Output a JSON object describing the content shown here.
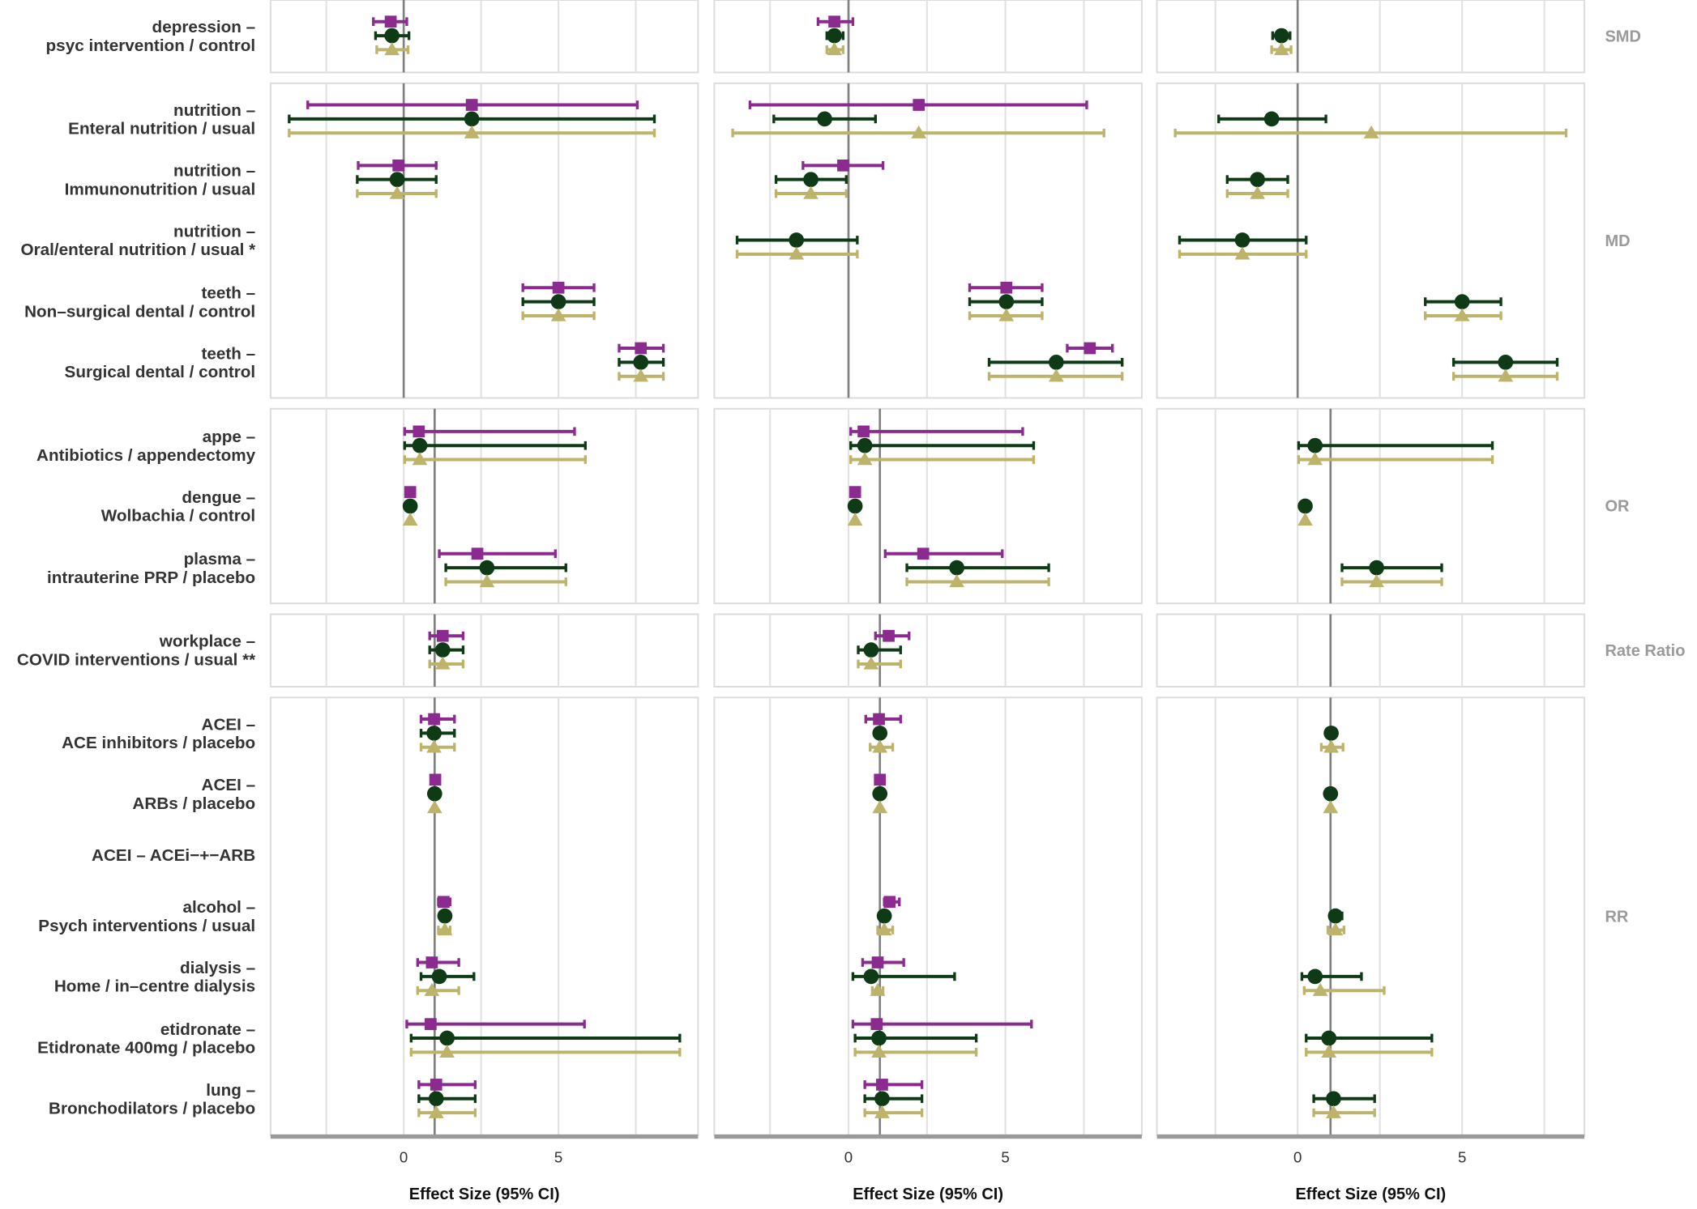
{
  "chart_data": {
    "type": "forest",
    "xlabel": "Effect Size (95% CI)",
    "x_ticks": [
      0,
      5
    ],
    "grid": true,
    "colors": {
      "square": "#8B2B8F",
      "circle": "#0E3A16",
      "triangle": "#BDB36A"
    },
    "series_markers": [
      "square",
      "circle",
      "triangle"
    ],
    "panels": 3,
    "facets": [
      {
        "name": "SMD",
        "reference": 0,
        "rows": [
          0
        ]
      },
      {
        "name": "MD",
        "reference": 0,
        "rows": [
          1,
          2,
          3,
          4,
          5
        ]
      },
      {
        "name": "OR",
        "reference": 1,
        "rows": [
          6,
          7,
          8
        ]
      },
      {
        "name": "Rate Ratio",
        "reference": 1,
        "rows": [
          9
        ]
      },
      {
        "name": "RR",
        "reference": 1,
        "rows": [
          10,
          11,
          12,
          13,
          14,
          15,
          16
        ]
      }
    ],
    "rows": [
      {
        "line1": "depression –",
        "line2": "psyc intervention / control",
        "values": [
          [
            [
              -0.42,
              -0.98,
              0.1
            ],
            [
              -0.38,
              -0.91,
              0.17
            ],
            [
              -0.38,
              -0.87,
              0.14
            ]
          ],
          [
            [
              -0.45,
              -0.97,
              0.14
            ],
            [
              -0.45,
              -0.69,
              -0.17
            ],
            [
              -0.45,
              -0.69,
              -0.17
            ]
          ],
          [
            null,
            [
              -0.49,
              -0.76,
              -0.23
            ],
            [
              -0.49,
              -0.79,
              -0.2
            ]
          ]
        ]
      },
      {
        "line1": "nutrition –",
        "line2": "Enteral nutrition / usual",
        "values": [
          [
            [
              2.2,
              -3.1,
              7.55
            ],
            [
              2.2,
              -3.7,
              8.1
            ],
            [
              2.2,
              -3.7,
              8.1
            ]
          ],
          [
            [
              2.24,
              -3.14,
              7.59
            ],
            [
              -0.76,
              -2.38,
              0.86
            ],
            [
              2.24,
              -3.69,
              8.14
            ]
          ],
          [
            null,
            [
              -0.79,
              -2.4,
              0.86
            ],
            [
              2.24,
              -3.72,
              8.16
            ]
          ]
        ]
      },
      {
        "line1": "nutrition –",
        "line2": "Immunonutrition / usual",
        "values": [
          [
            [
              -0.17,
              -1.47,
              1.05
            ],
            [
              -0.21,
              -1.5,
              1.05
            ],
            [
              -0.21,
              -1.5,
              1.05
            ]
          ],
          [
            [
              -0.17,
              -1.45,
              1.1
            ],
            [
              -1.2,
              -2.31,
              -0.07
            ],
            [
              -1.2,
              -2.31,
              -0.07
            ]
          ],
          [
            null,
            [
              -1.22,
              -2.14,
              -0.3
            ],
            [
              -1.22,
              -2.14,
              -0.3
            ]
          ]
        ]
      },
      {
        "line1": "nutrition –",
        "line2": "Oral/enteral nutrition / usual *",
        "values": [
          [
            null,
            null,
            null
          ],
          [
            null,
            [
              -1.66,
              -3.55,
              0.28
            ],
            [
              -1.66,
              -3.55,
              0.28
            ]
          ],
          [
            null,
            [
              -1.68,
              -3.59,
              0.26
            ],
            [
              -1.68,
              -3.59,
              0.26
            ]
          ]
        ]
      },
      {
        "line1": "teeth –",
        "line2": "Non–surgical dental / control",
        "values": [
          [
            [
              5.0,
              3.85,
              6.15
            ],
            [
              5.0,
              3.85,
              6.15
            ],
            [
              5.0,
              3.85,
              6.15
            ]
          ],
          [
            [
              5.03,
              3.86,
              6.17
            ],
            [
              5.03,
              3.86,
              6.17
            ],
            [
              5.03,
              3.86,
              6.17
            ]
          ],
          [
            null,
            [
              5.0,
              3.88,
              6.18
            ],
            [
              5.0,
              3.88,
              6.18
            ]
          ]
        ]
      },
      {
        "line1": "teeth –",
        "line2": "Surgical dental / control",
        "values": [
          [
            [
              7.66,
              6.96,
              8.39
            ],
            [
              7.66,
              6.96,
              8.39
            ],
            [
              7.66,
              6.96,
              8.39
            ]
          ],
          [
            [
              7.69,
              6.97,
              8.41
            ],
            [
              6.62,
              4.48,
              8.72
            ],
            [
              6.62,
              4.48,
              8.72
            ]
          ],
          [
            null,
            [
              6.32,
              4.74,
              7.89
            ],
            [
              6.32,
              4.74,
              7.89
            ]
          ]
        ]
      },
      {
        "line1": "appe –",
        "line2": "Antibiotics / appendectomy",
        "values": [
          [
            [
              0.49,
              0.03,
              5.52
            ],
            [
              0.52,
              0.03,
              5.87
            ],
            [
              0.52,
              0.03,
              5.87
            ]
          ],
          [
            [
              0.48,
              0.07,
              5.55
            ],
            [
              0.52,
              0.07,
              5.9
            ],
            [
              0.52,
              0.07,
              5.9
            ]
          ],
          [
            null,
            [
              0.53,
              0.03,
              5.92
            ],
            [
              0.53,
              0.03,
              5.92
            ]
          ]
        ]
      },
      {
        "line1": "dengue –",
        "line2": "Wolbachia  / control",
        "values": [
          [
            [
              0.21,
              0.21,
              0.21
            ],
            [
              0.21,
              0.21,
              0.21
            ],
            [
              0.21,
              0.21,
              0.21
            ]
          ],
          [
            [
              0.21,
              0.21,
              0.21
            ],
            [
              0.21,
              0.21,
              0.21
            ],
            [
              0.21,
              0.21,
              0.21
            ]
          ],
          [
            null,
            [
              0.23,
              0.23,
              0.23
            ],
            [
              0.23,
              0.23,
              0.23
            ]
          ]
        ]
      },
      {
        "line1": "plasma –",
        "line2": "intrauterine PRP / placebo",
        "values": [
          [
            [
              2.38,
              1.15,
              4.9
            ],
            [
              2.69,
              1.36,
              5.24
            ],
            [
              2.69,
              1.36,
              5.24
            ]
          ],
          [
            [
              2.38,
              1.17,
              4.9
            ],
            [
              3.45,
              1.86,
              6.38
            ],
            [
              3.45,
              1.86,
              6.38
            ]
          ],
          [
            null,
            [
              2.4,
              1.35,
              4.38
            ],
            [
              2.4,
              1.35,
              4.38
            ]
          ]
        ]
      },
      {
        "line1": "workplace –",
        "line2": "COVID interventions / usual **",
        "values": [
          [
            [
              1.26,
              0.84,
              1.92
            ],
            [
              1.26,
              0.84,
              1.92
            ],
            [
              1.26,
              0.84,
              1.92
            ]
          ],
          [
            [
              1.28,
              0.86,
              1.93
            ],
            [
              0.72,
              0.31,
              1.66
            ],
            [
              0.72,
              0.31,
              1.66
            ]
          ],
          [
            null,
            null,
            null
          ]
        ]
      },
      {
        "line1": "ACEI –",
        "line2": "ACE inhibitors / placebo",
        "values": [
          [
            [
              0.98,
              0.56,
              1.64
            ],
            [
              0.98,
              0.56,
              1.64
            ],
            [
              0.98,
              0.56,
              1.64
            ]
          ],
          [
            [
              0.97,
              0.55,
              1.66
            ],
            [
              1.0,
              1.0,
              1.0
            ],
            [
              1.0,
              0.69,
              1.41
            ]
          ],
          [
            null,
            [
              1.02,
              1.02,
              1.02
            ],
            [
              1.02,
              0.72,
              1.38
            ]
          ]
        ]
      },
      {
        "line1": "ACEI –",
        "line2": "ARBs / placebo",
        "values": [
          [
            [
              1.02,
              1.02,
              1.02
            ],
            [
              1.0,
              1.0,
              1.0
            ],
            [
              1.0,
              1.0,
              1.0
            ]
          ],
          [
            [
              1.0,
              1.0,
              1.0
            ],
            [
              1.0,
              1.0,
              1.0
            ],
            [
              1.0,
              1.0,
              1.0
            ]
          ],
          [
            null,
            [
              1.0,
              1.0,
              1.0
            ],
            [
              1.0,
              1.0,
              1.0
            ]
          ]
        ]
      },
      {
        "line1": "ACEI – ACEi−+−ARB",
        "line2": "",
        "values": [
          [
            null,
            null,
            null
          ],
          [
            null,
            null,
            null
          ],
          [
            null,
            null,
            null
          ]
        ]
      },
      {
        "line1": "alcohol –",
        "line2": "Psych interventions / usual",
        "values": [
          [
            [
              1.29,
              1.12,
              1.5
            ],
            [
              1.33,
              1.33,
              1.33
            ],
            [
              1.33,
              1.12,
              1.5
            ]
          ],
          [
            [
              1.31,
              1.14,
              1.62
            ],
            [
              1.14,
              1.14,
              1.14
            ],
            [
              1.14,
              0.93,
              1.41
            ]
          ],
          [
            null,
            [
              1.15,
              0.99,
              1.35
            ],
            [
              1.15,
              0.92,
              1.41
            ]
          ]
        ]
      },
      {
        "line1": "dialysis –",
        "line2": "Home / in–centre dialysis",
        "values": [
          [
            [
              0.91,
              0.45,
              1.78
            ],
            [
              1.15,
              0.56,
              2.27
            ],
            [
              0.91,
              0.45,
              1.78
            ]
          ],
          [
            [
              0.93,
              0.45,
              1.76
            ],
            [
              0.72,
              0.14,
              3.38
            ],
            [
              0.93,
              0.76,
              1.1
            ]
          ],
          [
            null,
            [
              0.53,
              0.13,
              1.94
            ],
            [
              0.69,
              0.2,
              2.63
            ]
          ]
        ]
      },
      {
        "line1": "etidronate –",
        "line2": "Etidronate 400mg / placebo",
        "values": [
          [
            [
              0.87,
              0.1,
              5.84
            ],
            [
              1.4,
              0.24,
              8.92
            ],
            [
              1.4,
              0.24,
              8.92
            ]
          ],
          [
            [
              0.9,
              0.14,
              5.83
            ],
            [
              0.97,
              0.21,
              4.07
            ],
            [
              0.97,
              0.21,
              4.07
            ]
          ],
          [
            null,
            [
              0.95,
              0.26,
              4.08
            ],
            [
              0.95,
              0.26,
              4.08
            ]
          ]
        ]
      },
      {
        "line1": "lung –",
        "line2": "Bronchodilators / placebo",
        "values": [
          [
            [
              1.05,
              0.49,
              2.31
            ],
            [
              1.05,
              0.49,
              2.31
            ],
            [
              1.05,
              0.49,
              2.31
            ]
          ],
          [
            [
              1.07,
              0.52,
              2.34
            ],
            [
              1.07,
              0.52,
              2.34
            ],
            [
              1.07,
              0.52,
              2.34
            ]
          ],
          [
            null,
            [
              1.09,
              0.49,
              2.34
            ],
            [
              1.09,
              0.49,
              2.34
            ]
          ]
        ]
      }
    ]
  }
}
